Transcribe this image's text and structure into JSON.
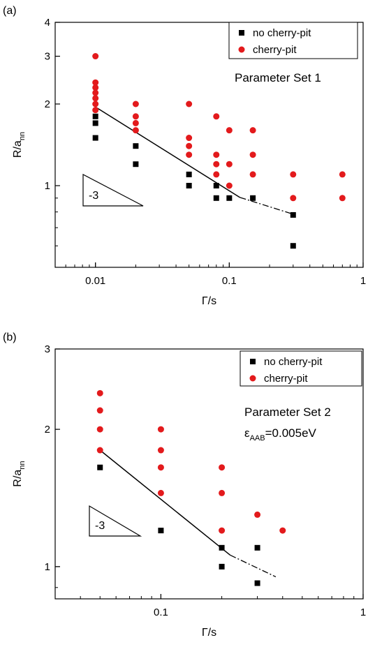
{
  "chart_data": [
    {
      "panel": "(a)",
      "type": "scatter",
      "xscale": "log",
      "yscale": "log",
      "xlim": [
        0.005,
        1
      ],
      "ylim": [
        0.5,
        4
      ],
      "xlabel": "Γ/s",
      "ylabel": "R/a",
      "ylabel_sub": "nn",
      "xticks": [
        {
          "v": 0.01,
          "label": "0.01"
        },
        {
          "v": 0.1,
          "label": "0.1"
        },
        {
          "v": 1,
          "label": "1"
        }
      ],
      "yticks": [
        {
          "v": 1,
          "label": "1"
        },
        {
          "v": 2,
          "label": "2"
        },
        {
          "v": 3,
          "label": "3"
        },
        {
          "v": 4,
          "label": "4"
        }
      ],
      "annotation_lines": [
        {
          "text": "Parameter Set 1"
        }
      ],
      "slope_label": "-3",
      "legend": {
        "position": "top-right"
      },
      "series": [
        {
          "name": "no cherry-pit",
          "marker": "square",
          "color": "#000000",
          "points": [
            [
              0.01,
              1.8
            ],
            [
              0.01,
              1.7
            ],
            [
              0.01,
              1.5
            ],
            [
              0.02,
              1.4
            ],
            [
              0.02,
              1.2
            ],
            [
              0.05,
              1.1
            ],
            [
              0.05,
              1.0
            ],
            [
              0.08,
              1.0
            ],
            [
              0.08,
              0.9
            ],
            [
              0.1,
              0.9
            ],
            [
              0.15,
              0.9
            ],
            [
              0.3,
              0.78
            ],
            [
              0.3,
              0.6
            ]
          ]
        },
        {
          "name": "cherry-pit",
          "marker": "circle",
          "color": "#e31a1c",
          "points": [
            [
              0.01,
              3.0
            ],
            [
              0.01,
              2.4
            ],
            [
              0.01,
              2.3
            ],
            [
              0.01,
              2.2
            ],
            [
              0.01,
              2.1
            ],
            [
              0.01,
              2.0
            ],
            [
              0.01,
              1.9
            ],
            [
              0.02,
              2.0
            ],
            [
              0.02,
              1.8
            ],
            [
              0.02,
              1.7
            ],
            [
              0.02,
              1.6
            ],
            [
              0.05,
              2.0
            ],
            [
              0.05,
              1.5
            ],
            [
              0.05,
              1.4
            ],
            [
              0.05,
              1.3
            ],
            [
              0.08,
              1.8
            ],
            [
              0.08,
              1.3
            ],
            [
              0.08,
              1.2
            ],
            [
              0.08,
              1.1
            ],
            [
              0.1,
              1.6
            ],
            [
              0.1,
              1.2
            ],
            [
              0.1,
              1.0
            ],
            [
              0.15,
              1.6
            ],
            [
              0.15,
              1.3
            ],
            [
              0.15,
              1.1
            ],
            [
              0.3,
              1.1
            ],
            [
              0.3,
              0.9
            ],
            [
              0.7,
              1.1
            ],
            [
              0.7,
              0.9
            ]
          ]
        }
      ],
      "fit_solid": [
        [
          0.01,
          1.95
        ],
        [
          0.12,
          0.905
        ]
      ],
      "fit_dashdot": [
        [
          0.12,
          0.905
        ],
        [
          0.3,
          0.785
        ]
      ]
    },
    {
      "panel": "(b)",
      "type": "scatter",
      "xscale": "log",
      "yscale": "log",
      "xlim": [
        0.03,
        1
      ],
      "ylim": [
        0.85,
        3
      ],
      "xlabel": "Γ/s",
      "ylabel": "R/a",
      "ylabel_sub": "nn",
      "xticks": [
        {
          "v": 0.1,
          "label": "0.1"
        },
        {
          "v": 1,
          "label": "1"
        }
      ],
      "yticks": [
        {
          "v": 1,
          "label": "1"
        },
        {
          "v": 2,
          "label": "2"
        },
        {
          "v": 3,
          "label": "3"
        }
      ],
      "annotation_lines": [
        {
          "text": "Parameter Set 2"
        },
        {
          "text": "ε",
          "sub": "AAB",
          "after": "=0.005eV"
        }
      ],
      "slope_label": "-3",
      "legend": {
        "position": "top-right"
      },
      "series": [
        {
          "name": "no cherry-pit",
          "marker": "square",
          "color": "#000000",
          "points": [
            [
              0.05,
              1.65
            ],
            [
              0.1,
              1.2
            ],
            [
              0.2,
              1.1
            ],
            [
              0.2,
              1.0
            ],
            [
              0.3,
              1.1
            ],
            [
              0.3,
              0.92
            ]
          ]
        },
        {
          "name": "cherry-pit",
          "marker": "circle",
          "color": "#e31a1c",
          "points": [
            [
              0.05,
              2.4
            ],
            [
              0.05,
              2.2
            ],
            [
              0.05,
              2.0
            ],
            [
              0.05,
              1.8
            ],
            [
              0.1,
              2.0
            ],
            [
              0.1,
              1.8
            ],
            [
              0.1,
              1.65
            ],
            [
              0.1,
              1.45
            ],
            [
              0.2,
              1.65
            ],
            [
              0.2,
              1.45
            ],
            [
              0.2,
              1.2
            ],
            [
              0.3,
              1.3
            ],
            [
              0.4,
              1.2
            ]
          ]
        }
      ],
      "fit_solid": [
        [
          0.05,
          1.8
        ],
        [
          0.22,
          1.06
        ]
      ],
      "fit_dashdot": [
        [
          0.22,
          1.06
        ],
        [
          0.37,
          0.95
        ]
      ]
    }
  ]
}
